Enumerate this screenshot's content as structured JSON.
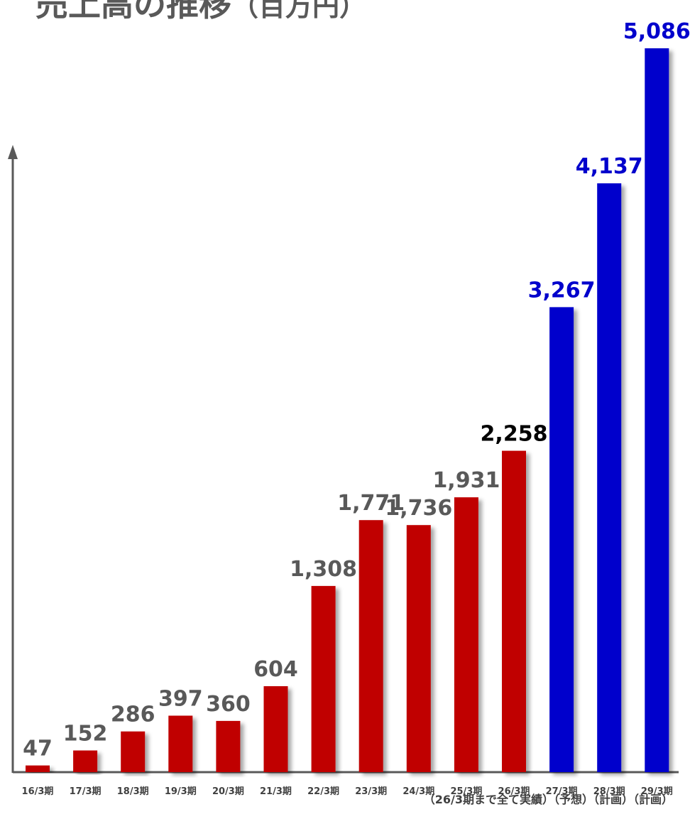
{
  "title": "売上高の推移",
  "title_unit": "（百万円）",
  "footnote": "（26/3期まで全て実績）（予想）（計画）（計画）",
  "colors": {
    "actual": "#c00000",
    "plan": "#0000cc",
    "label_actual": "#595959",
    "label_forecast": "#000000",
    "label_plan": "#0000cc",
    "axis": "#595959"
  },
  "chart_data": {
    "type": "bar",
    "title": "売上高の推移（百万円）",
    "xlabel": "",
    "ylabel": "",
    "ylim": [
      0,
      5086
    ],
    "grid": false,
    "categories": [
      "16/3期",
      "17/3期",
      "18/3期",
      "19/3期",
      "20/3期",
      "21/3期",
      "22/3期",
      "23/3期",
      "24/3期",
      "25/3期",
      "26/3期",
      "27/3期",
      "28/3期",
      "29/3期"
    ],
    "values": [
      47,
      152,
      286,
      397,
      360,
      604,
      1308,
      1771,
      1736,
      1931,
      2258,
      3267,
      4137,
      5086
    ],
    "data_labels": [
      "47",
      "152",
      "286",
      "397",
      "360",
      "604",
      "1,308",
      "1,771",
      "1,736",
      "1,931",
      "2,258",
      "3,267",
      "4,137",
      "5,086"
    ],
    "bar_kind": [
      "actual",
      "actual",
      "actual",
      "actual",
      "actual",
      "actual",
      "actual",
      "actual",
      "actual",
      "actual",
      "actual",
      "plan",
      "plan",
      "plan"
    ],
    "label_kind": [
      "actual",
      "actual",
      "actual",
      "actual",
      "actual",
      "actual",
      "actual",
      "actual",
      "actual",
      "actual",
      "forecast",
      "plan",
      "plan",
      "plan"
    ]
  }
}
